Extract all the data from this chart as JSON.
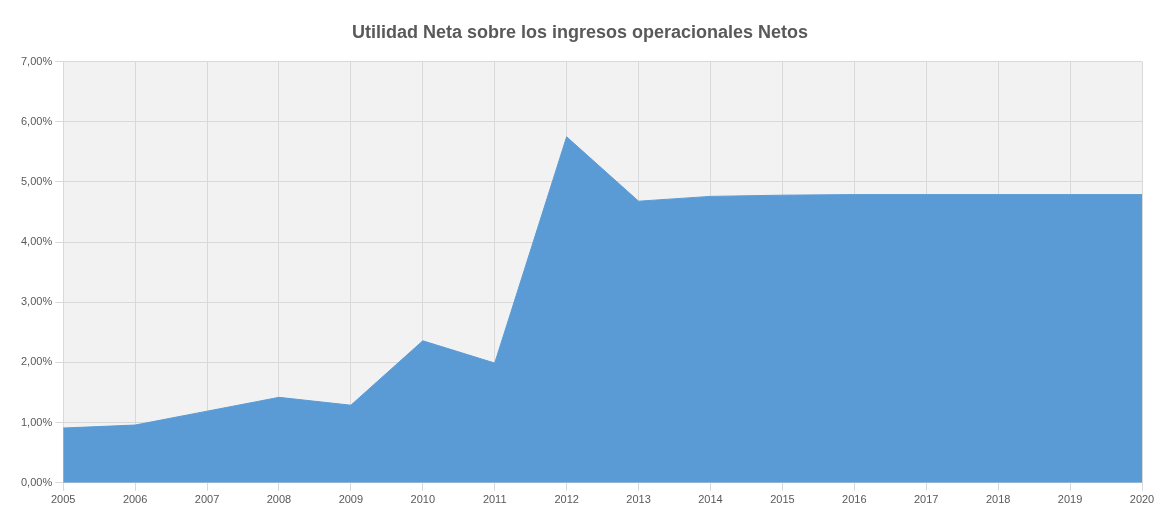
{
  "chart_data": {
    "type": "area",
    "title": "Utilidad Neta sobre los ingresos operacionales Netos",
    "categories": [
      "2005",
      "2006",
      "2007",
      "2008",
      "2009",
      "2010",
      "2011",
      "2012",
      "2013",
      "2014",
      "2015",
      "2016",
      "2017",
      "2018",
      "2019",
      "2020"
    ],
    "series": [
      {
        "color": "#5b9bd5",
        "values": [
          0.91,
          0.96,
          1.19,
          1.42,
          1.29,
          2.36,
          1.99,
          5.75,
          4.68,
          4.76,
          4.78,
          4.79,
          4.79,
          4.79,
          4.79,
          4.79
        ]
      }
    ],
    "ylim": [
      0,
      7
    ],
    "yticks": [
      {
        "value": 0,
        "label": "0,00%"
      },
      {
        "value": 1,
        "label": "1,00%"
      },
      {
        "value": 2,
        "label": "2,00%"
      },
      {
        "value": 3,
        "label": "3,00%"
      },
      {
        "value": 4,
        "label": "4,00%"
      },
      {
        "value": 5,
        "label": "5,00%"
      },
      {
        "value": 6,
        "label": "6,00%"
      },
      {
        "value": 7,
        "label": "7,00%"
      }
    ],
    "grid": true
  }
}
